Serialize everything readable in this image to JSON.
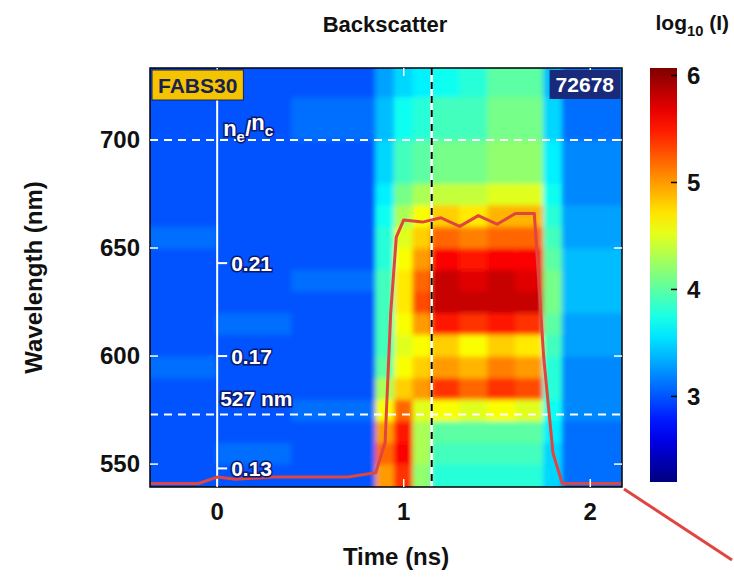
{
  "chart_data": {
    "type": "heatmap",
    "title": "Backscatter",
    "x_label": "Time (ns)",
    "y_label": "Wavelength (nm)",
    "xlim": [
      -0.36,
      2.17
    ],
    "ylim": [
      539.4,
      733.3
    ],
    "xticks": [
      0,
      1,
      2
    ],
    "yticks": [
      550,
      600,
      650,
      700
    ],
    "xbins": [
      -0.4,
      0.0,
      0.4,
      0.85,
      0.95,
      1.05,
      1.15,
      1.3,
      1.45,
      1.6,
      1.75,
      1.85,
      2.2
    ],
    "ybins": [
      535,
      550,
      560,
      570,
      580,
      590,
      600,
      610,
      620,
      630,
      640,
      650,
      660,
      670,
      680,
      700,
      720,
      740
    ],
    "cells": [
      [
        3.0,
        3.0,
        3.0,
        5.0,
        5.4,
        4.2,
        3.8,
        3.8,
        3.8,
        3.8,
        3.5,
        3.1
      ],
      [
        3.0,
        3.1,
        3.0,
        5.2,
        5.6,
        4.3,
        3.9,
        3.9,
        3.9,
        3.9,
        3.5,
        3.1
      ],
      [
        3.0,
        3.0,
        3.0,
        5.0,
        5.5,
        4.3,
        4.0,
        4.0,
        4.0,
        4.0,
        3.6,
        3.1
      ],
      [
        3.0,
        3.0,
        3.1,
        4.6,
        5.2,
        4.5,
        4.6,
        4.5,
        4.6,
        4.5,
        3.7,
        3.2
      ],
      [
        3.0,
        3.0,
        3.0,
        4.3,
        4.8,
        5.0,
        5.4,
        5.2,
        5.4,
        5.3,
        3.8,
        3.2
      ],
      [
        3.1,
        3.0,
        3.0,
        4.0,
        4.6,
        4.8,
        5.0,
        4.9,
        5.1,
        5.0,
        3.8,
        3.2
      ],
      [
        3.0,
        3.0,
        3.0,
        3.9,
        4.5,
        4.6,
        4.8,
        4.6,
        4.8,
        4.7,
        3.9,
        3.3
      ],
      [
        3.0,
        3.1,
        3.0,
        3.9,
        4.6,
        5.0,
        5.5,
        5.4,
        5.5,
        5.4,
        4.0,
        3.3
      ],
      [
        3.0,
        3.0,
        3.0,
        3.9,
        4.7,
        5.3,
        5.8,
        5.8,
        5.8,
        5.8,
        4.1,
        3.4
      ],
      [
        3.0,
        3.0,
        3.1,
        3.9,
        4.7,
        5.2,
        5.8,
        5.7,
        5.8,
        5.7,
        4.1,
        3.4
      ],
      [
        3.0,
        3.0,
        3.0,
        3.8,
        4.6,
        5.0,
        5.6,
        5.5,
        5.6,
        5.6,
        4.0,
        3.4
      ],
      [
        3.1,
        3.0,
        3.0,
        3.8,
        4.5,
        4.8,
        5.2,
        5.1,
        5.2,
        5.2,
        3.9,
        3.3
      ],
      [
        3.0,
        3.0,
        3.0,
        3.7,
        4.3,
        4.6,
        4.8,
        4.7,
        4.9,
        4.9,
        3.8,
        3.3
      ],
      [
        3.0,
        3.0,
        3.0,
        3.6,
        4.1,
        4.3,
        4.4,
        4.4,
        4.5,
        4.5,
        3.7,
        3.2
      ],
      [
        3.0,
        3.0,
        3.0,
        3.5,
        3.9,
        4.0,
        4.1,
        4.1,
        4.2,
        4.2,
        3.6,
        3.2
      ],
      [
        3.0,
        3.0,
        3.1,
        3.4,
        3.7,
        3.8,
        3.9,
        3.9,
        4.1,
        4.1,
        3.5,
        3.1
      ],
      [
        3.0,
        3.0,
        3.0,
        3.3,
        3.5,
        3.6,
        3.7,
        3.8,
        4.0,
        4.0,
        3.4,
        3.1
      ]
    ],
    "colorbar": {
      "title": "log10 (I)",
      "lim": [
        2.2,
        6.07
      ],
      "ticks": [
        3,
        4,
        5,
        6
      ]
    },
    "line": {
      "color": "#e0453f",
      "x": [
        -0.36,
        -0.1,
        0.0,
        0.1,
        0.3,
        0.5,
        0.7,
        0.85,
        0.9,
        0.93,
        0.96,
        1.0,
        1.1,
        1.2,
        1.3,
        1.4,
        1.5,
        1.6,
        1.7,
        1.75,
        1.8,
        1.85,
        2.17
      ],
      "y": [
        541,
        541,
        544,
        543,
        544,
        544,
        544,
        546,
        560,
        620,
        655,
        663,
        662,
        664,
        660,
        665,
        661,
        666,
        666,
        600,
        555,
        541,
        541
      ]
    },
    "reference_lines": {
      "x": [
        1.15
      ],
      "y": [
        700,
        573
      ]
    },
    "labels": {
      "diagnostic": "FABS30",
      "shot": "72678",
      "reference": "527 nm"
    },
    "density_axis": {
      "label": "ne/nc",
      "x": 0,
      "ticks": [
        {
          "value": 643,
          "label": "0.21"
        },
        {
          "value": 600,
          "label": "0.17"
        },
        {
          "value": 548,
          "label": "0.13"
        }
      ]
    }
  }
}
